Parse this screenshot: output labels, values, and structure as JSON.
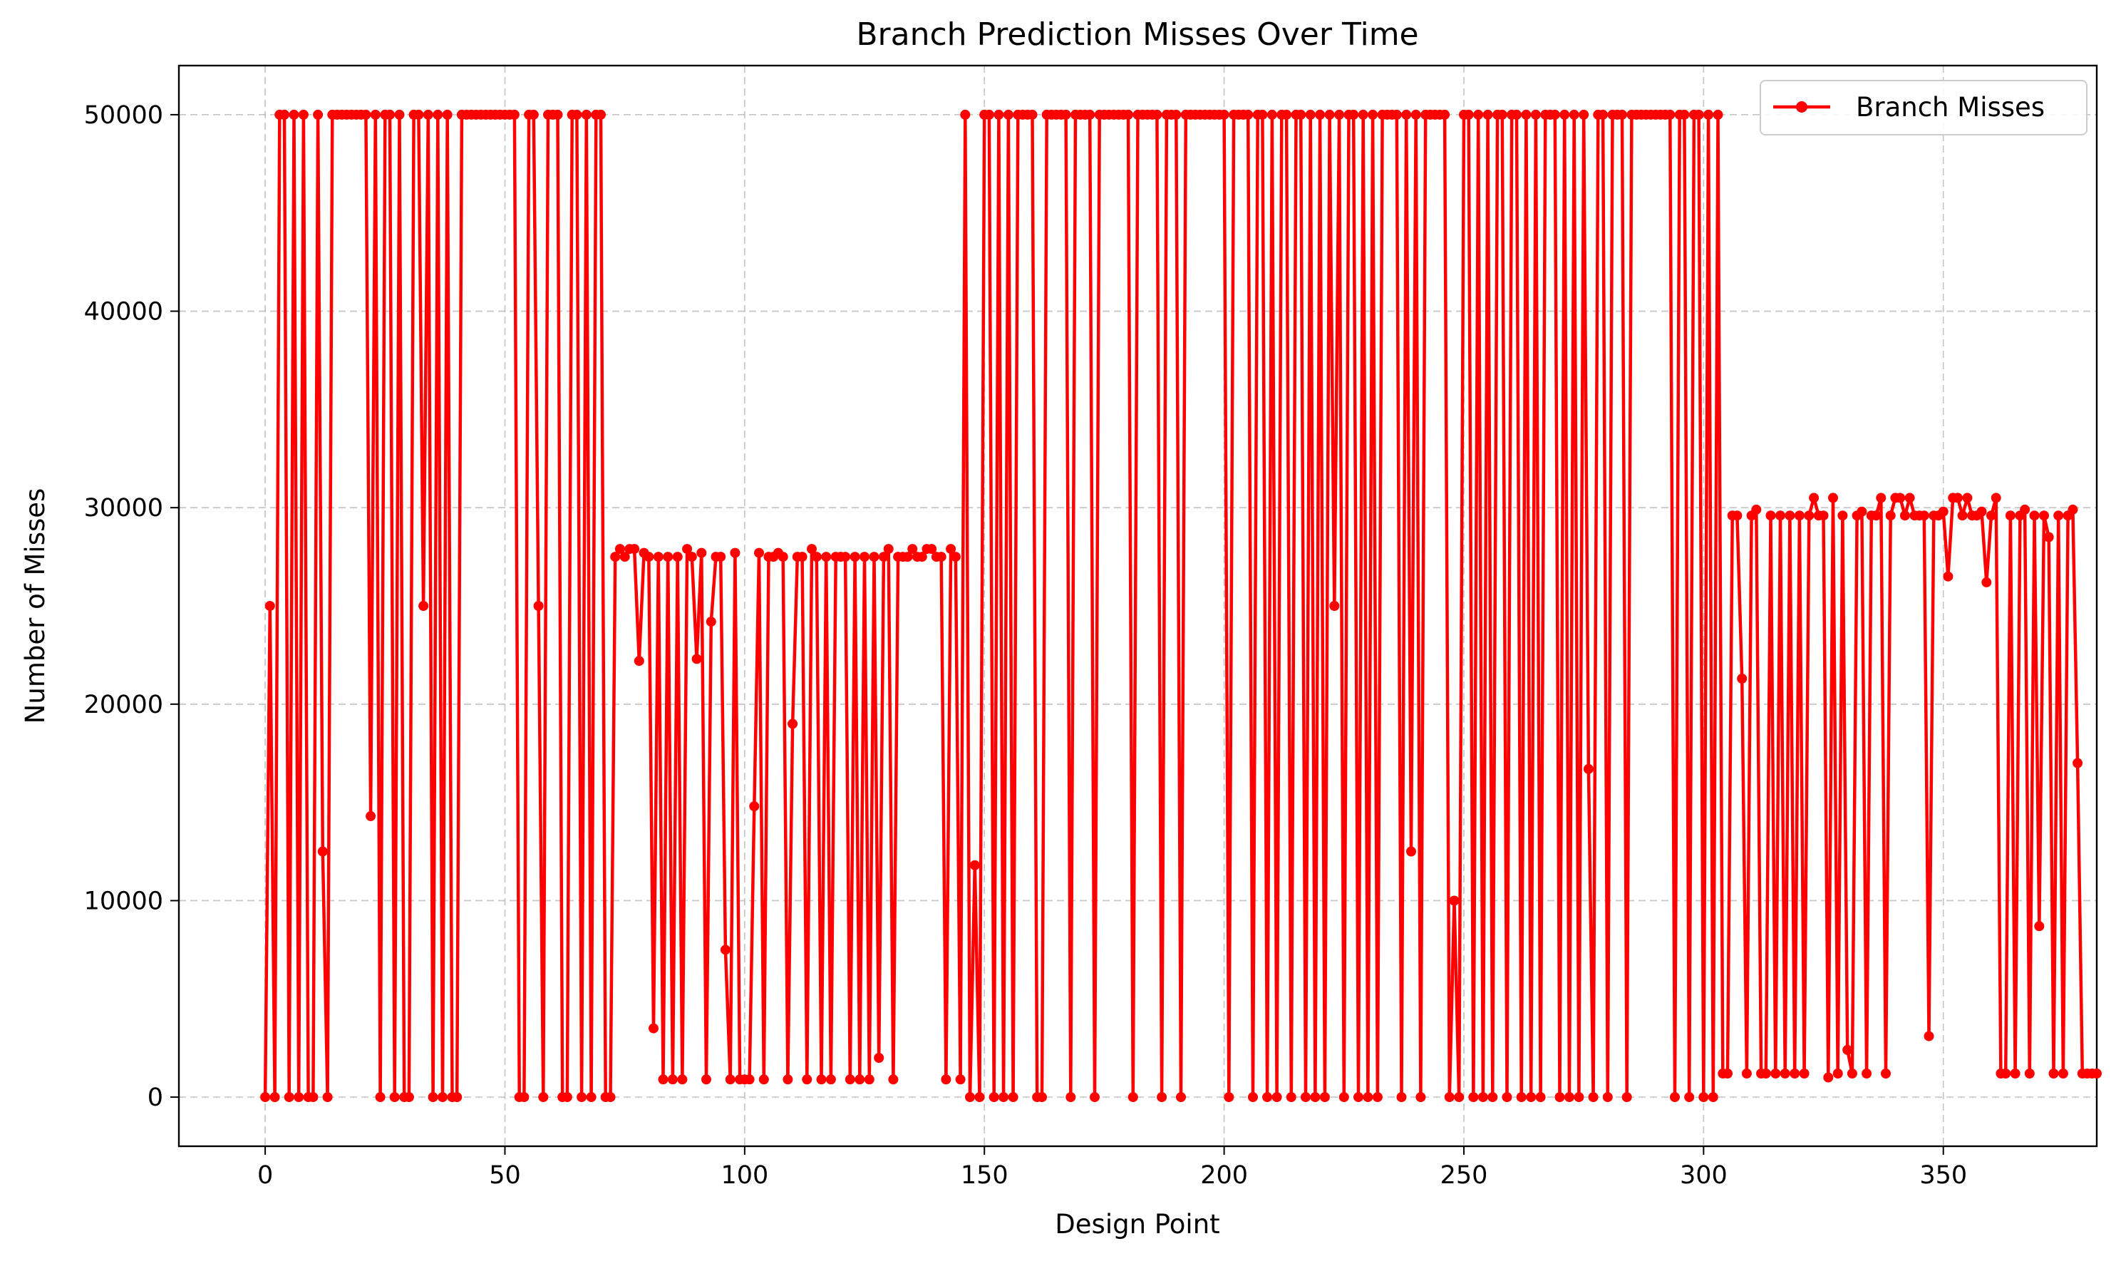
{
  "chart_data": {
    "type": "line",
    "title": "Branch Prediction Misses Over Time",
    "xlabel": "Design Point",
    "ylabel": "Number of Misses",
    "xlim": [
      -18,
      382
    ],
    "ylim": [
      -2500,
      52500
    ],
    "x_ticks": [
      0,
      50,
      100,
      150,
      200,
      250,
      300,
      350
    ],
    "y_ticks": [
      0,
      10000,
      20000,
      30000,
      40000,
      50000
    ],
    "grid": true,
    "legend": {
      "placement": "top-right"
    },
    "series": [
      {
        "name": "Branch Misses",
        "color": "#ff0000",
        "marker": "circle",
        "x_start": 0,
        "x_step": 1,
        "values": [
          0,
          25000,
          0,
          50000,
          50000,
          0,
          50000,
          0,
          50000,
          0,
          0,
          50000,
          12500,
          0,
          50000,
          50000,
          50000,
          50000,
          50000,
          50000,
          50000,
          50000,
          14300,
          50000,
          0,
          50000,
          50000,
          0,
          50000,
          0,
          0,
          50000,
          50000,
          25000,
          50000,
          0,
          50000,
          0,
          50000,
          0,
          0,
          50000,
          50000,
          50000,
          50000,
          50000,
          50000,
          50000,
          50000,
          50000,
          50000,
          50000,
          50000,
          0,
          0,
          50000,
          50000,
          25000,
          0,
          50000,
          50000,
          50000,
          0,
          0,
          50000,
          50000,
          0,
          50000,
          0,
          50000,
          50000,
          0,
          0,
          27500,
          27900,
          27500,
          27900,
          27900,
          22200,
          27700,
          27500,
          3500,
          27500,
          900,
          27500,
          900,
          27500,
          900,
          27900,
          27500,
          22300,
          27700,
          900,
          24200,
          27500,
          27500,
          7500,
          900,
          27700,
          900,
          900,
          900,
          14800,
          27700,
          900,
          27500,
          27500,
          27700,
          27500,
          900,
          19000,
          27500,
          27500,
          900,
          27900,
          27500,
          900,
          27500,
          900,
          27500,
          27500,
          27500,
          900,
          27500,
          900,
          27500,
          900,
          27500,
          2000,
          27500,
          27900,
          900,
          27500,
          27500,
          27500,
          27900,
          27500,
          27500,
          27900,
          27900,
          27500,
          27500,
          900,
          27900,
          27500,
          900,
          50000,
          0,
          11800,
          0,
          50000,
          50000,
          0,
          50000,
          0,
          50000,
          0,
          50000,
          50000,
          50000,
          50000,
          0,
          0,
          50000,
          50000,
          50000,
          50000,
          50000,
          0,
          50000,
          50000,
          50000,
          50000,
          0,
          50000,
          50000,
          50000,
          50000,
          50000,
          50000,
          50000,
          0,
          50000,
          50000,
          50000,
          50000,
          50000,
          0,
          50000,
          50000,
          50000,
          0,
          50000,
          50000,
          50000,
          50000,
          50000,
          50000,
          50000,
          50000,
          50000,
          0,
          50000,
          50000,
          50000,
          50000,
          0,
          50000,
          50000,
          0,
          50000,
          0,
          50000,
          50000,
          0,
          50000,
          50000,
          0,
          50000,
          0,
          50000,
          0,
          50000,
          25000,
          50000,
          0,
          50000,
          50000,
          0,
          50000,
          0,
          50000,
          0,
          50000,
          50000,
          50000,
          50000,
          0,
          50000,
          12500,
          50000,
          0,
          50000,
          50000,
          50000,
          50000,
          50000,
          0,
          10000,
          0,
          50000,
          50000,
          0,
          50000,
          0,
          50000,
          0,
          50000,
          50000,
          0,
          50000,
          50000,
          0,
          50000,
          0,
          50000,
          0,
          50000,
          50000,
          50000,
          0,
          50000,
          0,
          50000,
          0,
          50000,
          16700,
          0,
          50000,
          50000,
          0,
          50000,
          50000,
          50000,
          0,
          50000,
          50000,
          50000,
          50000,
          50000,
          50000,
          50000,
          50000,
          50000,
          0,
          50000,
          50000,
          0,
          50000,
          50000,
          0,
          50000,
          0,
          50000,
          1200,
          1200,
          29600,
          29600,
          21300,
          1200,
          29600,
          29900,
          1200,
          1200,
          29600,
          1200,
          29600,
          1200,
          29600,
          1200,
          29600,
          1200,
          29600,
          30500,
          29600,
          29600,
          1000,
          30500,
          1200,
          29600,
          2400,
          1200,
          29600,
          29800,
          1200,
          29600,
          29600,
          30500,
          1200,
          29600,
          30500,
          30500,
          29600,
          30500,
          29600,
          29600,
          29600,
          3100,
          29600,
          29600,
          29800,
          26500,
          30500,
          30500,
          29600,
          30500,
          29600,
          29600,
          29800,
          26200,
          29600,
          30500,
          1200,
          1200,
          29600,
          1200,
          29600,
          29900,
          1200,
          29600,
          8700,
          29600,
          28500,
          1200,
          29600,
          1200,
          29600,
          29900,
          17000,
          1200,
          1200,
          1200,
          1200
        ]
      }
    ]
  }
}
